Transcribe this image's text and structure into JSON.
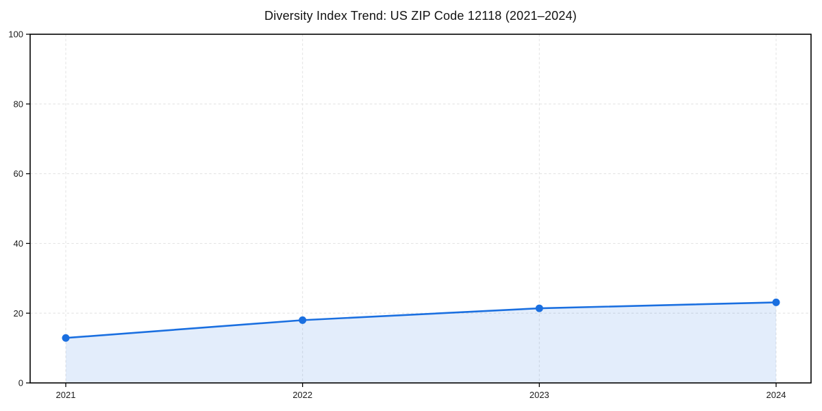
{
  "chart_data": {
    "type": "line",
    "title": "Diversity Index Trend: US ZIP Code 12118 (2021–2024)",
    "categories": [
      "2021",
      "2022",
      "2023",
      "2024"
    ],
    "values": [
      12.9,
      18.0,
      21.4,
      23.1
    ],
    "xlabel": "",
    "ylabel": "",
    "ylim": [
      0,
      100
    ],
    "yticks": [
      0,
      20,
      40,
      60,
      80,
      100
    ],
    "grid": true,
    "grid_style": "dashed",
    "legend": false,
    "marker": "circle",
    "area_fill": true,
    "line_color": "#1a6fe0",
    "fill_color": "rgba(26,111,224,0.12)",
    "grid_color": "#e4e4e4",
    "axis_color": "#000000",
    "tick_label_color": "#1a1a1a"
  }
}
